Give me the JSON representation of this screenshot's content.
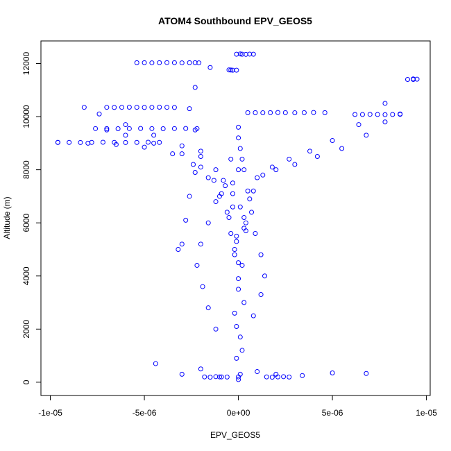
{
  "chart_data": {
    "type": "scatter",
    "title": "ATOM4 Southbound EPV_GEOS5",
    "xlabel": "EPV_GEOS5",
    "ylabel": "Altitude (m)",
    "xlim": [
      -1.05e-05,
      1.02e-05
    ],
    "ylim": [
      -500,
      12850
    ],
    "x_ticks": [
      -1e-05,
      -5e-06,
      0,
      5e-06,
      1e-05
    ],
    "x_tick_labels": [
      "-1e-05",
      "-5e-06",
      "0e+00",
      "5e-06",
      "1e-05"
    ],
    "y_ticks": [
      0,
      2000,
      4000,
      6000,
      8000,
      10000,
      12000
    ],
    "y_tick_labels": [
      "0",
      "2000",
      "4000",
      "6000",
      "8000",
      "10000",
      "12000"
    ],
    "marker": "open-circle",
    "color": "#0000ff",
    "grid": false,
    "legend": "none",
    "series": [
      {
        "x": [
          0,
          -1e-07,
          1e-07,
          -2e-07,
          0,
          2e-07,
          -1e-07,
          3e-07,
          -3e-07,
          0
        ],
        "y": [
          200,
          900,
          1700,
          2600,
          3500,
          4400,
          5300,
          6200,
          7100,
          8000
        ]
      },
      {
        "x": [
          1e-07,
          2e-07,
          -1e-07,
          3e-07,
          0,
          -2e-07,
          4e-07,
          1e-07,
          -3e-07,
          2e-07
        ],
        "y": [
          300,
          1200,
          2100,
          3000,
          3900,
          4800,
          5700,
          6600,
          7500,
          8400
        ]
      },
      {
        "x": [
          0,
          -4e-07,
          -6e-07,
          -9e-07,
          -1.3e-06,
          -2e-06,
          -3e-06,
          -4.5e-06,
          -6e-06,
          -7e-06
        ],
        "y": [
          4500,
          5600,
          6400,
          7100,
          7600,
          8100,
          8600,
          9000,
          9300,
          9500
        ]
      },
      {
        "x": [
          -2e-07,
          -5e-07,
          -1e-06,
          -1.6e-06,
          -2.4e-06,
          -3.5e-06,
          -5e-06,
          -6.5e-06,
          -8e-06,
          -9.6e-06
        ],
        "y": [
          5000,
          6200,
          7000,
          7700,
          8200,
          8600,
          8850,
          8950,
          9000,
          9030
        ]
      },
      {
        "x": [
          -1e-07,
          -3e-07,
          -7e-07,
          -1.2e-06,
          -2e-06,
          -3e-06,
          -4.5e-06,
          -6e-06,
          -7.4e-06,
          -8.2e-06
        ],
        "y": [
          5500,
          6600,
          7400,
          8000,
          8500,
          8900,
          9300,
          9700,
          10100,
          10350
        ]
      },
      {
        "x": [
          -1.5e-06,
          -2.3e-06,
          -2.6e-06,
          -2.3e-06,
          -2e-06,
          -2.3e-06,
          -2.6e-06,
          -2.8e-06,
          -3e-06,
          -3.2e-06
        ],
        "y": [
          11850,
          11100,
          10300,
          9500,
          8700,
          7900,
          7000,
          6100,
          5200,
          5000
        ]
      },
      {
        "x": [
          3e-07,
          6e-07,
          1e-06,
          1.8e-06,
          2.7e-06,
          3.8e-06,
          5e-06,
          6.4e-06,
          7.8e-06,
          9.3e-06
        ],
        "y": [
          5800,
          6900,
          7700,
          8100,
          8400,
          8700,
          9100,
          9700,
          10500,
          11400
        ]
      },
      {
        "x": [
          4e-07,
          8e-07,
          1.3e-06,
          2e-06,
          3e-06,
          4.2e-06,
          5.5e-06,
          6.8e-06,
          7.8e-06,
          8.6e-06
        ],
        "y": [
          6000,
          7200,
          7800,
          8000,
          8200,
          8500,
          8800,
          9300,
          9800,
          10100
        ]
      },
      {
        "x": [
          -1.2e-06,
          -1.6e-06,
          -1.9e-06,
          -2.2e-06,
          -2e-06,
          -1.6e-06,
          -1.2e-06,
          -8e-07,
          -4e-07,
          0
        ],
        "y": [
          2000,
          2800,
          3600,
          4400,
          5200,
          6000,
          6800,
          7600,
          8400,
          9200
        ]
      },
      {
        "x": [
          8e-07,
          1.2e-06,
          1.4e-06,
          1.2e-06,
          9e-07,
          7e-07,
          5e-07,
          3e-07,
          1e-07,
          0
        ],
        "y": [
          2500,
          3300,
          4000,
          4800,
          5600,
          6400,
          7200,
          8000,
          8800,
          9600
        ]
      },
      {
        "x": [
          -4.4e-06,
          -3e-06,
          -2e-06,
          -1e-06,
          0,
          1e-06,
          2e-06,
          3.4e-06,
          5e-06,
          6.8e-06
        ],
        "y": [
          700,
          300,
          500,
          200,
          100,
          400,
          300,
          250,
          350,
          330
        ]
      },
      {
        "x": [
          -7e-06,
          -6.6e-06,
          -6.2e-06,
          -5.8e-06,
          -5.4e-06,
          -5e-06,
          -4.6e-06,
          -4.2e-06,
          -3.8e-06,
          -3.4e-06
        ],
        "y": [
          10350,
          10345,
          10350,
          10355,
          10350,
          10345,
          10350,
          10355,
          10350,
          10345
        ]
      },
      {
        "x": [
          -5.4e-06,
          -5e-06,
          -4.6e-06,
          -4.2e-06,
          -3.8e-06,
          -3.4e-06,
          -3e-06,
          -2.6e-06,
          -2.3e-06,
          -2.1e-06
        ],
        "y": [
          12030,
          12030,
          12025,
          12030,
          12035,
          12030,
          12025,
          12030,
          12030,
          12025
        ]
      },
      {
        "x": [
          -7.6e-06,
          -7e-06,
          -6.4e-06,
          -5.8e-06,
          -5.2e-06,
          -4.6e-06,
          -4e-06,
          -3.4e-06,
          -2.8e-06,
          -2.2e-06
        ],
        "y": [
          9550,
          9550,
          9545,
          9550,
          9555,
          9550,
          9545,
          9550,
          9555,
          9550
        ]
      },
      {
        "x": [
          -9.6e-06,
          -9e-06,
          -8.4e-06,
          -7.8e-06,
          -7.2e-06,
          -6.6e-06,
          -6e-06,
          -5.4e-06,
          -4.8e-06,
          -4.2e-06
        ],
        "y": [
          9030,
          9030,
          9025,
          9030,
          9035,
          9030,
          9025,
          9030,
          9035,
          9030
        ]
      },
      {
        "x": [
          5e-07,
          9e-07,
          1.3e-06,
          1.7e-06,
          2.1e-06,
          2.5e-06,
          3e-06,
          3.5e-06,
          4e-06,
          4.6e-06
        ],
        "y": [
          10150,
          10150,
          10145,
          10150,
          10155,
          10150,
          10145,
          10150,
          10155,
          10150
        ]
      },
      {
        "x": [
          6.2e-06,
          6.6e-06,
          7e-06,
          7.4e-06,
          7.8e-06,
          8.2e-06,
          8.6e-06,
          9e-06,
          9.3e-06,
          9.5e-06
        ],
        "y": [
          10080,
          10080,
          10085,
          10080,
          10075,
          10080,
          10085,
          11400,
          11420,
          11410
        ]
      },
      {
        "x": [
          -1e-07,
          1e-07,
          2e-07,
          4e-07,
          6e-07,
          8e-07,
          -3e-07,
          -5e-07,
          -4e-07,
          -1e-07
        ],
        "y": [
          12350,
          12360,
          12350,
          12345,
          12355,
          12350,
          11750,
          11760,
          11755,
          11750
        ]
      },
      {
        "x": [
          -1.8e-06,
          -1.5e-06,
          -1.2e-06,
          -9e-07,
          -6e-07,
          1.8e-06,
          2.1e-06,
          2.4e-06,
          2.7e-06,
          1.5e-06
        ],
        "y": [
          200,
          190,
          210,
          200,
          195,
          190,
          200,
          210,
          195,
          200
        ]
      }
    ]
  }
}
